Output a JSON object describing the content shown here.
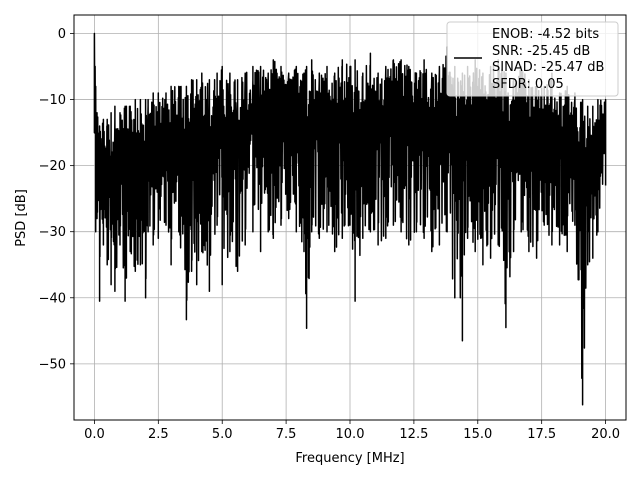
{
  "chart_data": {
    "type": "line",
    "title": "",
    "xlabel": "Frequency [MHz]",
    "ylabel": "PSD [dB]",
    "xlim": [
      -0.8,
      20.8
    ],
    "ylim": [
      -58.5,
      2.8
    ],
    "xticks": [
      0.0,
      2.5,
      5.0,
      7.5,
      10.0,
      12.5,
      15.0,
      17.5,
      20.0
    ],
    "xtick_labels": [
      "0.0",
      "2.5",
      "5.0",
      "7.5",
      "10.0",
      "12.5",
      "15.0",
      "17.5",
      "20.0"
    ],
    "yticks": [
      0,
      -10,
      -20,
      -30,
      -40,
      -50
    ],
    "ytick_labels": [
      "0",
      "−10",
      "−20",
      "−30",
      "−40",
      "−50"
    ],
    "grid": true,
    "legend_position": "top-right",
    "legend_entries": [
      "ENOB: -4.52 bits",
      "SNR: -25.45 dB",
      "SINAD: -25.47 dB",
      "SFDR: 0.05"
    ],
    "series": [
      {
        "color": "#000000",
        "x": [
          0.0,
          0.05,
          0.1,
          0.2,
          0.35,
          0.5,
          0.65,
          0.8,
          1.0,
          1.2,
          1.25,
          1.4,
          1.6,
          1.8,
          2.0,
          2.1,
          2.3,
          2.5,
          2.8,
          3.0,
          3.3,
          3.6,
          3.8,
          4.0,
          4.2,
          4.5,
          4.8,
          5.0,
          5.3,
          5.6,
          5.9,
          6.2,
          6.5,
          6.8,
          7.0,
          7.3,
          7.6,
          7.9,
          8.2,
          8.3,
          8.5,
          8.8,
          9.1,
          9.4,
          9.7,
          10.0,
          10.2,
          10.5,
          10.8,
          11.1,
          11.4,
          11.7,
          12.0,
          12.3,
          12.6,
          12.9,
          13.2,
          13.5,
          13.8,
          14.1,
          14.4,
          14.6,
          14.9,
          15.2,
          15.5,
          15.8,
          16.1,
          16.4,
          16.7,
          17.0,
          17.3,
          17.6,
          17.9,
          18.2,
          18.5,
          18.8,
          19.1,
          19.3,
          19.5,
          19.7,
          20.0
        ],
        "upper": [
          0.0,
          -8,
          -12,
          -14,
          -13,
          -13,
          -12,
          -11,
          -12,
          -11,
          -11,
          -11,
          -10,
          -10,
          -10,
          -10,
          -9,
          -9,
          -9,
          -8,
          -8,
          -8,
          -7,
          -7,
          -6,
          -7,
          -6,
          -5,
          -6,
          -7,
          -6,
          -5,
          -5,
          -6,
          -4,
          -5,
          -6,
          -5,
          -6,
          -5,
          -4,
          -6,
          -5,
          -6,
          -4,
          -5,
          -4,
          -6,
          -3,
          -6,
          -5,
          -4,
          -4,
          -5,
          -6,
          -4,
          -6,
          -5,
          -2,
          -5,
          -6,
          -5,
          -4,
          -6,
          -5,
          -4,
          -6,
          -7,
          -5,
          -7,
          -8,
          -8,
          -6,
          -9,
          -8,
          -9,
          -10,
          -11,
          -11,
          -10,
          -10
        ],
        "lower": [
          -15,
          -30,
          -28,
          -40.5,
          -32,
          -35,
          -38,
          -39,
          -32,
          -40.5,
          -37,
          -33,
          -36,
          -35,
          -40,
          -30,
          -32,
          -31,
          -29,
          -35,
          -30,
          -43.3,
          -36,
          -38,
          -33,
          -39,
          -29,
          -38,
          -33,
          -36,
          -32,
          -30,
          -33,
          -30,
          -31,
          -29,
          -28,
          -30,
          -33,
          -44.6,
          -30,
          -31,
          -30,
          -33,
          -31,
          -29,
          -40.5,
          -31,
          -30,
          -32,
          -31,
          -29,
          -30,
          -32,
          -30,
          -31,
          -33,
          -32,
          -30,
          -40,
          -46.5,
          -31,
          -33,
          -35,
          -34,
          -32,
          -44.5,
          -33,
          -30,
          -33,
          -34,
          -29,
          -32,
          -32,
          -33,
          -29,
          -56.2,
          -35,
          -34,
          -30,
          -23
        ]
      }
    ]
  }
}
